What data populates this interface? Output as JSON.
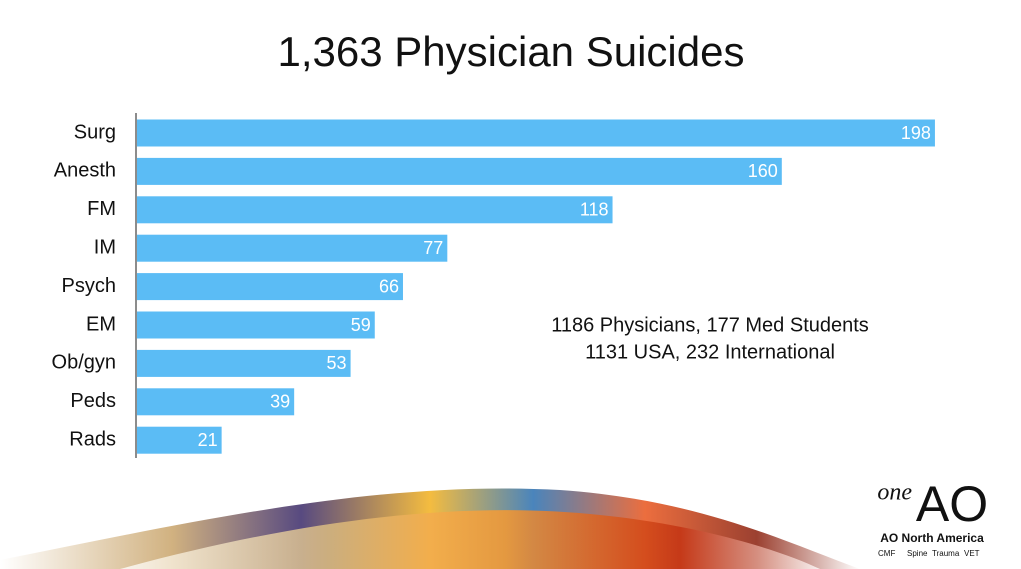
{
  "chart_data": {
    "type": "bar",
    "orientation": "horizontal",
    "title": "1,363 Physician Suicides",
    "categories": [
      "Surg",
      "Anesth",
      "FM",
      "IM",
      "Psych",
      "EM",
      "Ob/gyn",
      "Peds",
      "Rads"
    ],
    "values": [
      198,
      160,
      118,
      77,
      66,
      59,
      53,
      39,
      21
    ],
    "color": "#5bbcf5",
    "annotations": [
      "1186 Physicians, 177 Med Students",
      "1131 USA, 232 International"
    ]
  },
  "logo": {
    "prefix": "one",
    "mark": "AO",
    "name": "AO North America",
    "divisions": [
      "CMF",
      "Spine",
      "Trauma",
      "VET"
    ]
  }
}
